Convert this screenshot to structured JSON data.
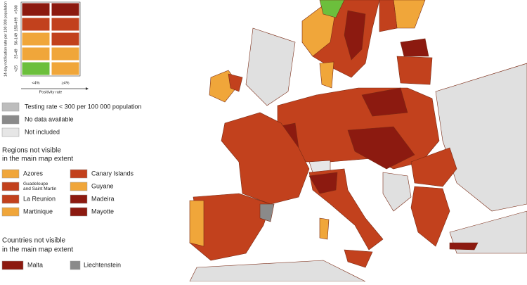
{
  "matrix": {
    "y_axis_label": "14-day notification rate per 100 000 population",
    "x_axis_label": "Positivity rate",
    "rows": [
      ">500",
      "150-499",
      "50-149",
      "25-49",
      "<25"
    ],
    "columns": [
      "<4%",
      "≥4%"
    ],
    "cell_colors": [
      [
        "#8c1a10",
        "#8c1a10"
      ],
      [
        "#c2411d",
        "#c2411d"
      ],
      [
        "#f0a63a",
        "#c2411d"
      ],
      [
        "#f0a63a",
        "#f0a63a"
      ],
      [
        "#6cbf3c",
        "#f0a63a"
      ]
    ]
  },
  "status_legend": [
    {
      "label": "Testing rate < 300 per 100 000 population",
      "color": "#bdbdbd"
    },
    {
      "label": "No data available",
      "color": "#8a8a8a"
    },
    {
      "label": "Not included",
      "color": "#e6e6e6"
    }
  ],
  "regions": {
    "heading": [
      "Regions not visible",
      "in the main map extent"
    ],
    "items": [
      {
        "label": [
          "Azores"
        ],
        "color": "#f0a63a"
      },
      {
        "label": [
          "Canary Islands"
        ],
        "color": "#c2411d"
      },
      {
        "label": [
          "Guadeloupe",
          "and Saint Martin"
        ],
        "color": "#c2411d"
      },
      {
        "label": [
          "Guyane"
        ],
        "color": "#f0a63a"
      },
      {
        "label": [
          "La Reunion"
        ],
        "color": "#c2411d"
      },
      {
        "label": [
          "Madeira"
        ],
        "color": "#8c1a10"
      },
      {
        "label": [
          "Martinique"
        ],
        "color": "#f0a63a"
      },
      {
        "label": [
          "Mayotte"
        ],
        "color": "#8c1a10"
      }
    ]
  },
  "countries": {
    "heading": [
      "Countries not visible",
      "in the main map extent"
    ],
    "items": [
      {
        "label": "Malta",
        "color": "#8c1a10"
      },
      {
        "label": "Liechtenstein",
        "color": "#8a8a8a"
      }
    ]
  }
}
